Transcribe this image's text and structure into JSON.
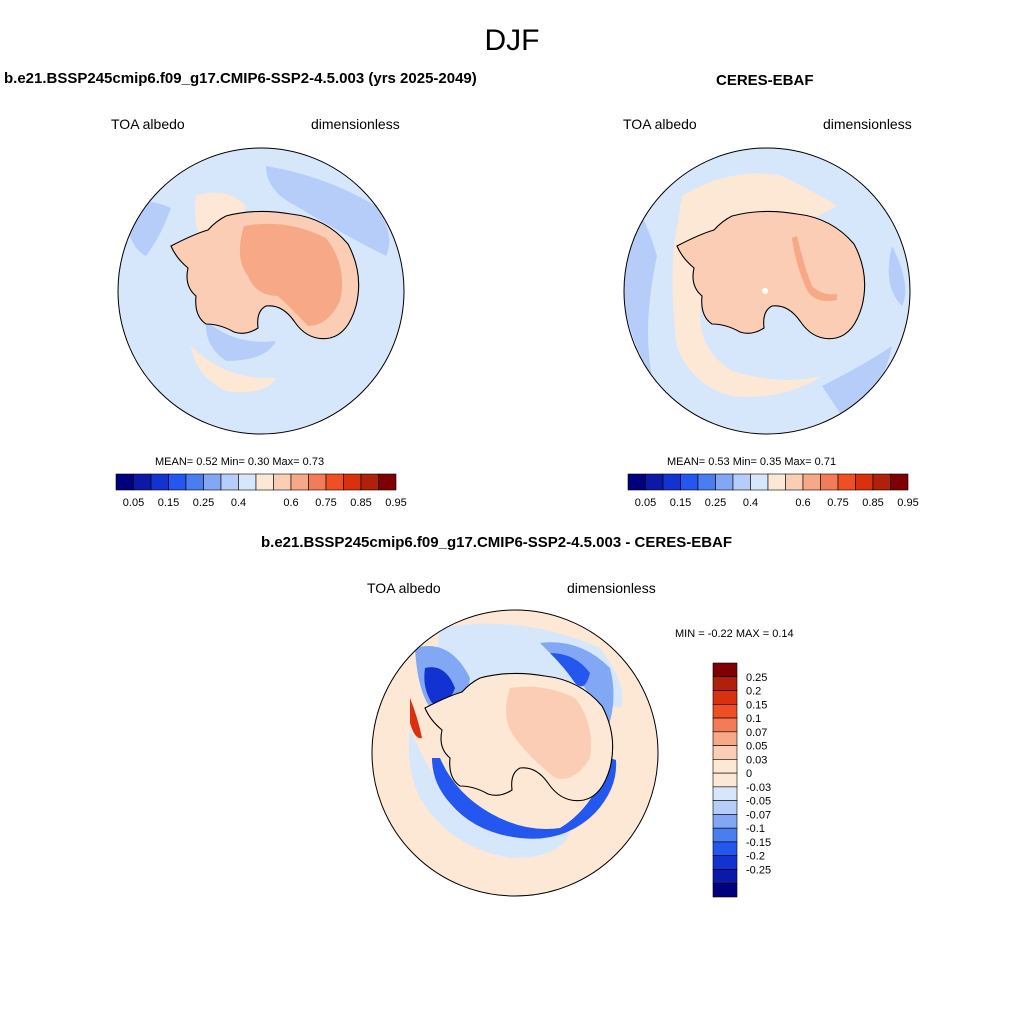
{
  "page_title": "DJF",
  "panels": {
    "model": {
      "title": "b.e21.BSSP245cmip6.f09_g17.CMIP6-SSP2-4.5.003 (yrs 2025-2049)",
      "left_label": "TOA albedo",
      "right_label": "dimensionless",
      "stats": "MEAN=   0.52  Min=   0.30  Max=   0.73"
    },
    "obs": {
      "title": "CERES-EBAF",
      "left_label": "TOA albedo",
      "right_label": "dimensionless",
      "stats": "MEAN=   0.53  Min=   0.35  Max=   0.71"
    },
    "diff": {
      "title": "b.e21.BSSP245cmip6.f09_g17.CMIP6-SSP2-4.5.003 - CERES-EBAF",
      "left_label": "TOA albedo",
      "right_label": "dimensionless",
      "stats": "MIN =  -0.22 MAX =   0.14"
    }
  },
  "colorbar_abs": {
    "colors": [
      "#00007f",
      "#0a1aa6",
      "#1233d1",
      "#2456f0",
      "#4a7df0",
      "#82a7f4",
      "#b5cdf8",
      "#d7e7fb",
      "#fde8d6",
      "#fbcdb4",
      "#f7a887",
      "#f47b57",
      "#f04f26",
      "#d9300e",
      "#b0200a",
      "#7f0000"
    ],
    "labels": [
      "0.05",
      "0.15",
      "0.25",
      "0.4",
      "0.6",
      "0.75",
      "0.85",
      "0.95"
    ]
  },
  "colorbar_diff": {
    "colors": [
      "#7f0000",
      "#b0200a",
      "#d9300e",
      "#f04f26",
      "#f47b57",
      "#f7a887",
      "#fbcdb4",
      "#fde8d6",
      "#fde8d6",
      "#d7e7fb",
      "#b5cdf8",
      "#82a7f4",
      "#4a7df0",
      "#2456f0",
      "#1233d1",
      "#0a1aa6",
      "#00007f"
    ],
    "labels": [
      "0.25",
      "0.2",
      "0.15",
      "0.1",
      "0.07",
      "0.05",
      "0.03",
      "0",
      "-0.03",
      "-0.05",
      "-0.07",
      "-0.1",
      "-0.15",
      "-0.2",
      "-0.25"
    ]
  }
}
